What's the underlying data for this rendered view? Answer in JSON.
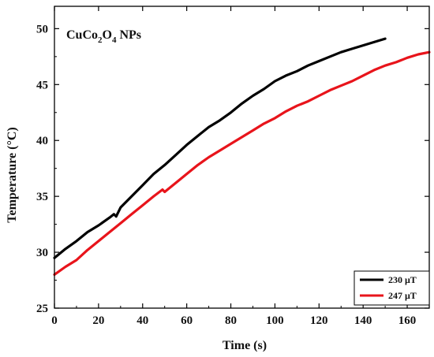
{
  "chart_data": {
    "type": "line",
    "title": "",
    "annotation": {
      "base": "CuCo",
      "sub1": "2",
      "mid": "O",
      "sub2": "4",
      "tail": " NPs"
    },
    "xlabel": "Time (s)",
    "ylabel": "Temperature (°C)",
    "xlim": [
      0,
      170
    ],
    "ylim": [
      25,
      52
    ],
    "xticks": [
      0,
      20,
      40,
      60,
      80,
      100,
      120,
      140,
      160
    ],
    "yticks": [
      25,
      30,
      35,
      40,
      45,
      50
    ],
    "grid": false,
    "legend_position": "bottom-right",
    "series": [
      {
        "name": "230 μT",
        "color": "#000000",
        "x": [
          0,
          5,
          10,
          15,
          20,
          25,
          27,
          28,
          30,
          35,
          40,
          45,
          50,
          55,
          60,
          65,
          70,
          75,
          80,
          85,
          90,
          95,
          100,
          105,
          110,
          115,
          120,
          125,
          130,
          135,
          140,
          145,
          150
        ],
        "y": [
          29.5,
          30.3,
          31.0,
          31.8,
          32.4,
          33.1,
          33.4,
          33.2,
          34.0,
          35.0,
          36.0,
          37.0,
          37.8,
          38.7,
          39.6,
          40.4,
          41.2,
          41.8,
          42.5,
          43.3,
          44.0,
          44.6,
          45.3,
          45.8,
          46.2,
          46.7,
          47.1,
          47.5,
          47.9,
          48.2,
          48.5,
          48.8,
          49.1
        ]
      },
      {
        "name": "247 μT",
        "color": "#e8141b",
        "x": [
          0,
          5,
          10,
          15,
          20,
          25,
          30,
          35,
          40,
          45,
          49,
          50,
          55,
          60,
          65,
          70,
          75,
          80,
          85,
          90,
          95,
          100,
          105,
          110,
          115,
          120,
          125,
          130,
          135,
          140,
          145,
          150,
          155,
          160,
          165,
          170
        ],
        "y": [
          28.0,
          28.7,
          29.3,
          30.2,
          31.0,
          31.8,
          32.6,
          33.4,
          34.2,
          35.0,
          35.6,
          35.4,
          36.2,
          37.0,
          37.8,
          38.5,
          39.1,
          39.7,
          40.3,
          40.9,
          41.5,
          42.0,
          42.6,
          43.1,
          43.5,
          44.0,
          44.5,
          44.9,
          45.3,
          45.8,
          46.3,
          46.7,
          47.0,
          47.4,
          47.7,
          47.9
        ]
      }
    ]
  }
}
